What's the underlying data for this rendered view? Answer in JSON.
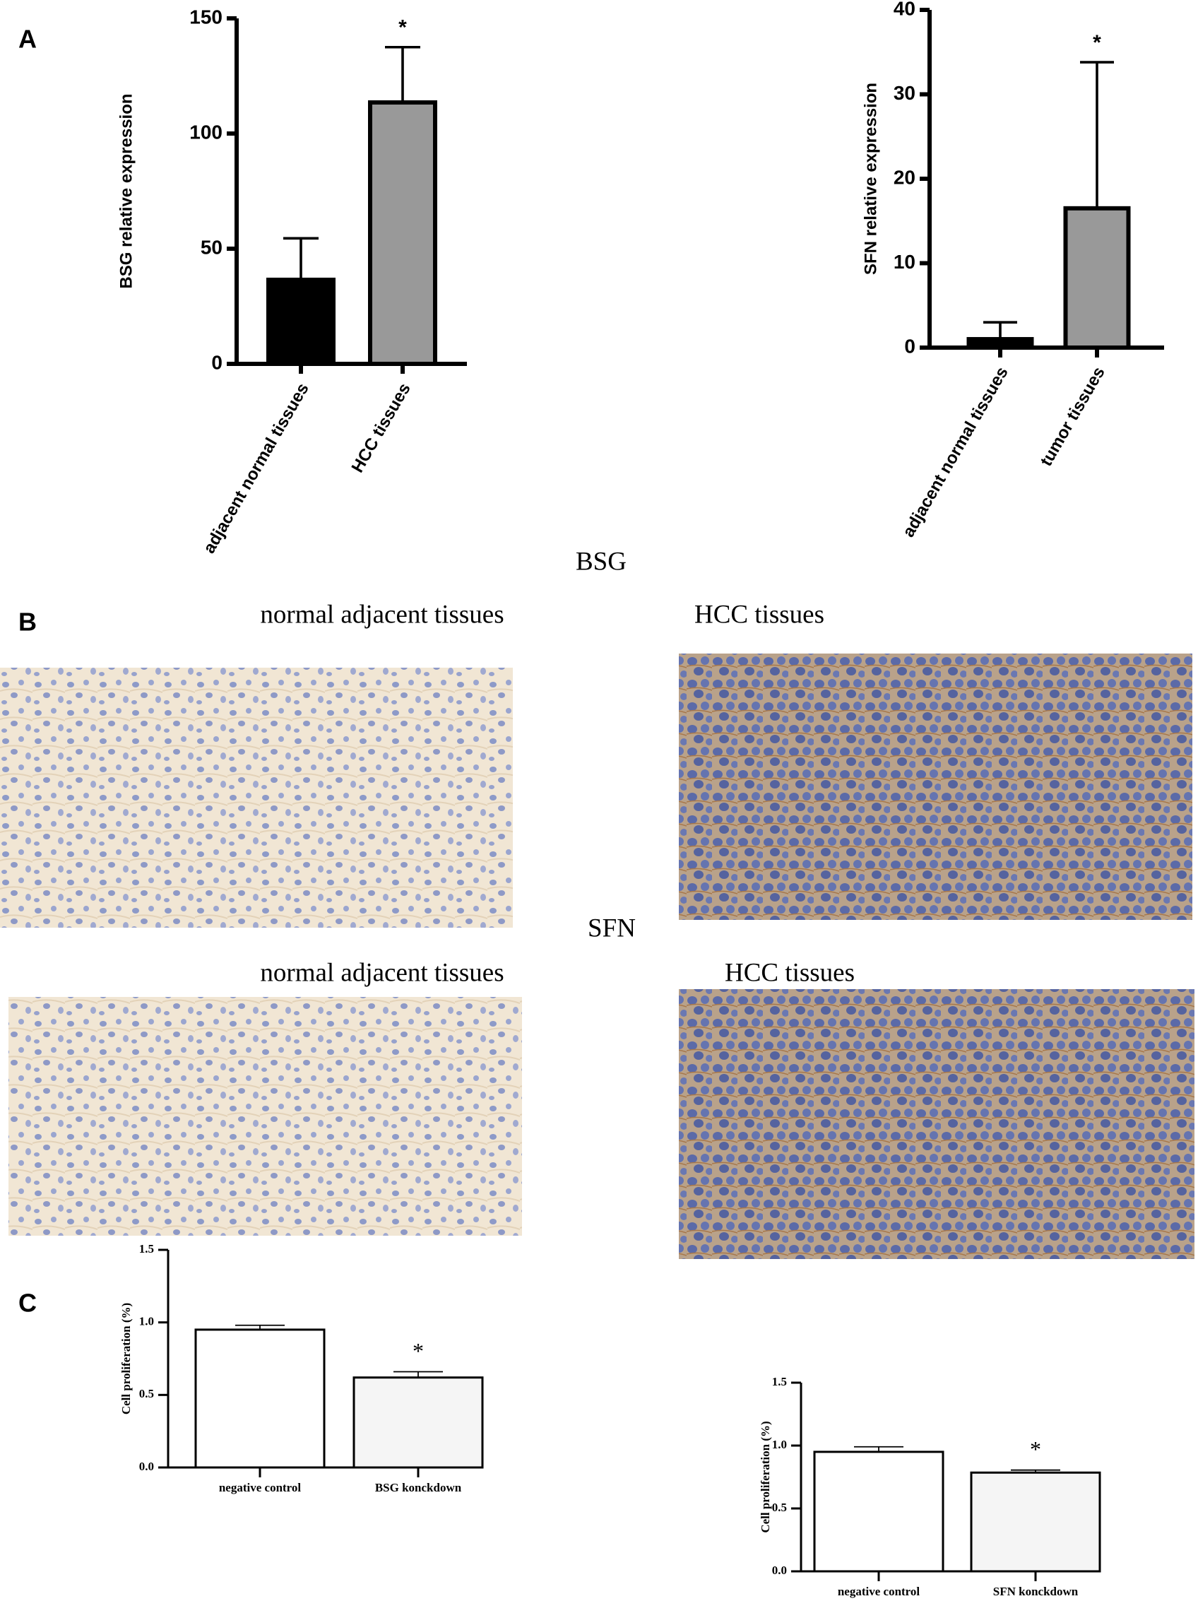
{
  "panels": {
    "a": "A",
    "b": "B",
    "c": "C"
  },
  "micrographs": {
    "bsg": {
      "title": "BSG",
      "left": "normal adjacent tissues",
      "right": "HCC tissues"
    },
    "sfn": {
      "title": "SFN",
      "left": "normal adjacent tissues",
      "right": "HCC tissues"
    }
  },
  "chart_data": [
    {
      "type": "bar",
      "y_label": "BSG relative expression",
      "categories": [
        "adjacent normal tissues",
        "HCC tissues"
      ],
      "values": [
        36.5,
        113.5
      ],
      "errors": [
        18,
        24
      ],
      "bar_colors": [
        "#000000",
        "#999999"
      ],
      "significance": [
        null,
        "*"
      ],
      "ylim": [
        0,
        150
      ],
      "yticks": [
        0,
        50,
        100,
        150
      ]
    },
    {
      "type": "bar",
      "y_label": "SFN relative expression",
      "categories": [
        "adjacent normal tissues",
        "tumor tissues"
      ],
      "values": [
        1,
        16.5
      ],
      "errors": [
        2,
        17.3
      ],
      "bar_colors": [
        "#000000",
        "#999999"
      ],
      "significance": [
        null,
        "*"
      ],
      "ylim": [
        0,
        40
      ],
      "yticks": [
        0,
        10,
        20,
        30,
        40
      ]
    },
    {
      "type": "bar",
      "y_label": "Cell proliferation (%)",
      "categories": [
        "negative control",
        "BSG konckdown"
      ],
      "values": [
        0.95,
        0.62
      ],
      "errors": [
        0.03,
        0.04
      ],
      "bar_colors": [
        "#ffffff",
        "#f5f5f5"
      ],
      "significance": [
        null,
        "*"
      ],
      "ylim": [
        0,
        1.5
      ],
      "yticks": [
        {
          "value": 0,
          "label": "0.0"
        },
        0.5,
        {
          "value": 1,
          "label": "1.0"
        },
        1.5
      ]
    },
    {
      "type": "bar",
      "y_label": "Cell proliferation (%)",
      "categories": [
        "negative control",
        "SFN konckdown"
      ],
      "values": [
        0.95,
        0.785
      ],
      "errors": [
        0.04,
        0.02
      ],
      "bar_colors": [
        "#ffffff",
        "#f5f5f5"
      ],
      "significance": [
        null,
        "*"
      ],
      "ylim": [
        0,
        1.5
      ],
      "yticks": [
        {
          "value": 0,
          "label": "0.0"
        },
        0.5,
        {
          "value": 1,
          "label": "1.0"
        },
        1.5
      ]
    }
  ]
}
